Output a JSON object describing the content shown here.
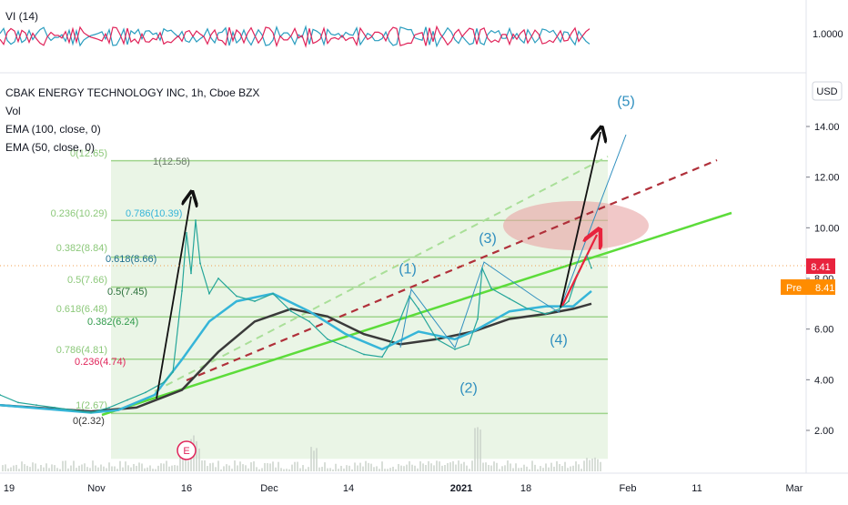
{
  "header": {
    "symbol_line": "CBAK ENERGY TECHNOLOGY INC, 1h, Cboe BZX",
    "legend": [
      "Vol",
      "EMA (100, close, 0)",
      "EMA (50, close, 0)"
    ],
    "vi_label": "VI (14)",
    "currency": "USD"
  },
  "price_tags": {
    "last": "8.41",
    "pre_label": "Pre",
    "pre_value": "8.41",
    "vi_value": "1.0000"
  },
  "colors": {
    "price": "#26a69a",
    "ema100": "#3a3a3a",
    "ema50": "#36b5d8",
    "trend_green": "#5cdc3a",
    "dashed_red": "#b0303a",
    "fib": "#8cc87a",
    "vi_plus": "#2b9dbf",
    "vi_minus": "#e0245a",
    "arrow_red": "#e8233d",
    "target_zone": "#e7a4a4"
  },
  "chart_data": {
    "type": "line",
    "title": "CBAK ENERGY TECHNOLOGY INC, 1h, Cboe BZX",
    "ylabel": "USD",
    "ylim": [
      0,
      16
    ],
    "y_ticks": [
      "2.00",
      "4.00",
      "6.00",
      "8.00",
      "10.00",
      "12.00",
      "14.00"
    ],
    "x_ticks": [
      "19",
      "Nov",
      "16",
      "Dec",
      "14",
      "2021",
      "18",
      "Feb",
      "11",
      "Mar"
    ],
    "grid": false,
    "series": [
      {
        "name": "Price",
        "x": [
          0,
          20,
          40,
          60,
          80,
          100,
          120,
          140,
          160,
          180,
          190,
          200,
          205,
          210,
          215,
          220,
          230,
          240,
          260,
          280,
          300,
          320,
          340,
          360,
          380,
          400,
          420,
          430,
          440,
          450,
          460,
          480,
          500,
          515,
          525,
          530,
          540,
          560,
          580,
          600,
          615,
          625,
          635,
          645,
          650
        ],
        "values": [
          3.4,
          3.1,
          3.0,
          2.9,
          2.8,
          2.7,
          2.9,
          3.2,
          3.5,
          3.9,
          4.3,
          7.5,
          9.8,
          8.2,
          10.3,
          8.6,
          7.4,
          8.0,
          7.3,
          7.1,
          7.4,
          6.7,
          6.3,
          5.6,
          5.3,
          5.0,
          4.9,
          5.5,
          6.4,
          7.3,
          6.8,
          5.6,
          5.2,
          5.4,
          6.4,
          8.4,
          7.6,
          7.2,
          6.8,
          6.6,
          6.8,
          7.1,
          8.2,
          8.9,
          8.41
        ]
      },
      {
        "name": "EMA (50, close, 0)",
        "x": [
          0,
          100,
          130,
          170,
          200,
          230,
          260,
          300,
          340,
          380,
          420,
          460,
          500,
          520,
          560,
          600,
          630,
          650
        ],
        "values": [
          3.0,
          2.7,
          2.8,
          3.4,
          4.8,
          6.3,
          7.1,
          7.4,
          6.7,
          5.8,
          5.2,
          5.9,
          5.6,
          5.9,
          6.7,
          6.9,
          6.9,
          7.5
        ]
      },
      {
        "name": "EMA (100, close, 0)",
        "x": [
          0,
          100,
          150,
          200,
          240,
          280,
          320,
          360,
          400,
          440,
          480,
          520,
          560,
          600,
          630,
          650
        ],
        "values": [
          3.0,
          2.75,
          2.9,
          3.6,
          5.1,
          6.3,
          6.8,
          6.5,
          5.8,
          5.4,
          5.6,
          5.9,
          6.4,
          6.6,
          6.8,
          7.0
        ]
      }
    ],
    "fib_levels": [
      {
        "label": "0(12.65)",
        "value": 12.65,
        "color": "#8cc87a",
        "side": "left"
      },
      {
        "label": "1(12.58)",
        "value": 12.58,
        "color": "#6a7a6a",
        "side": "right"
      },
      {
        "label": "0.236(10.29)",
        "value": 10.29,
        "color": "#8cc87a",
        "side": "left"
      },
      {
        "label": "0.786(10.39)",
        "value": 10.39,
        "color": "#36b5d8",
        "side": "right"
      },
      {
        "label": "0.382(8.84)",
        "value": 8.84,
        "color": "#8cc87a",
        "side": "left"
      },
      {
        "label": "0.618(8.66)",
        "value": 8.66,
        "color": "#1f6f8f",
        "side": "right"
      },
      {
        "label": "0.5(7.66)",
        "value": 7.66,
        "color": "#8cc87a",
        "side": "left"
      },
      {
        "label": "0.5(7.45)",
        "value": 7.45,
        "color": "#2a6f3a",
        "side": "right"
      },
      {
        "label": "0.618(6.48)",
        "value": 6.48,
        "color": "#8cc87a",
        "side": "left"
      },
      {
        "label": "0.382(6.24)",
        "value": 6.24,
        "color": "#2f9a4a",
        "side": "right"
      },
      {
        "label": "0.786(4.81)",
        "value": 4.81,
        "color": "#8cc87a",
        "side": "left"
      },
      {
        "label": "0.236(4.74)",
        "value": 4.74,
        "color": "#e0245a",
        "side": "right"
      },
      {
        "label": "1(2.67)",
        "value": 2.67,
        "color": "#8cc87a",
        "side": "left"
      },
      {
        "label": "0(2.32)",
        "value": 2.32,
        "color": "#333333",
        "side": "right"
      }
    ],
    "wave_labels": [
      {
        "text": "(1)",
        "x": 448,
        "y": 8.2
      },
      {
        "text": "(2)",
        "x": 515,
        "y": 3.5
      },
      {
        "text": "(3)",
        "x": 536,
        "y": 9.4
      },
      {
        "text": "(4)",
        "x": 614,
        "y": 5.4
      },
      {
        "text": "(5)",
        "x": 688,
        "y": 14.8
      }
    ],
    "event_marker": "E"
  }
}
